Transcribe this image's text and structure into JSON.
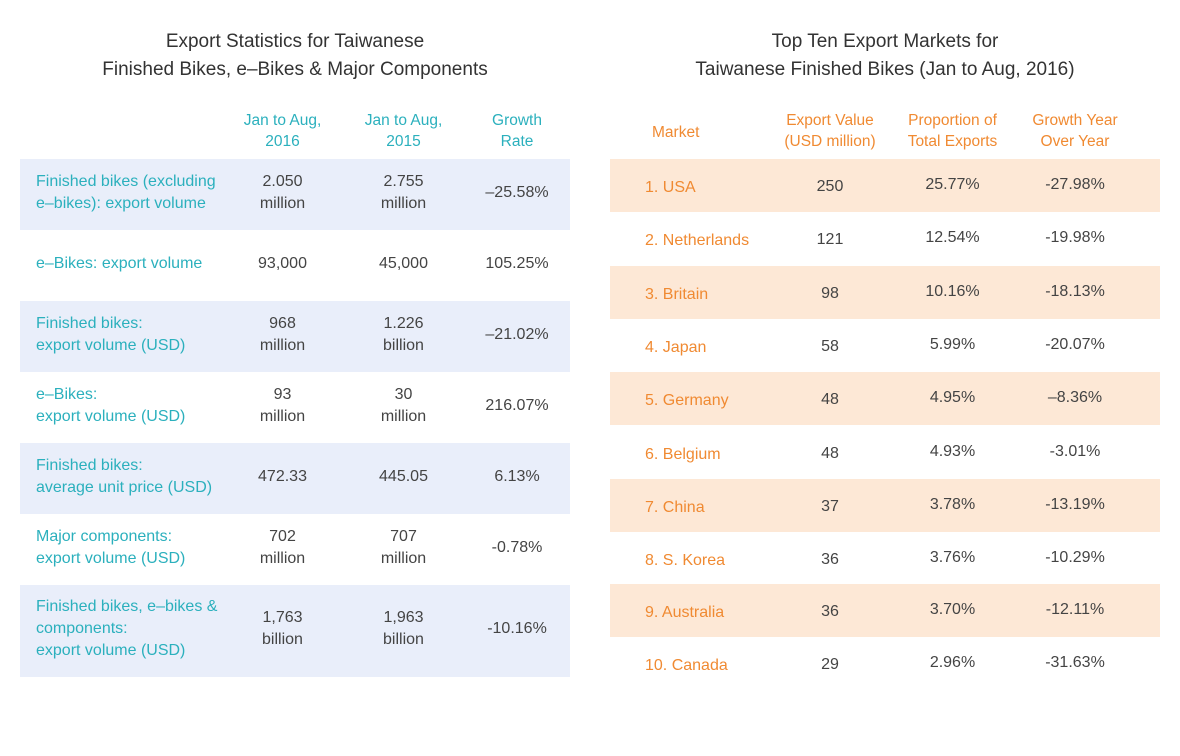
{
  "left": {
    "title": [
      "Export Statistics for Taiwanese",
      "Finished Bikes, e–Bikes & Major Components"
    ],
    "headers": {
      "col2": [
        "Jan to Aug,",
        "2016"
      ],
      "col3": [
        "Jan to Aug,",
        "2015"
      ],
      "col4": [
        "Growth",
        "Rate"
      ]
    },
    "rows": [
      {
        "label": [
          "Finished bikes (excluding",
          "e–bikes): export volume"
        ],
        "v2016": [
          "2.050",
          "million"
        ],
        "v2015": [
          "2.755",
          "million"
        ],
        "growth": [
          "–25.58%"
        ]
      },
      {
        "label": [
          "e–Bikes: export volume"
        ],
        "v2016": [
          "93,000"
        ],
        "v2015": [
          "45,000"
        ],
        "growth": [
          "105.25%"
        ]
      },
      {
        "label": [
          "Finished bikes:",
          "export volume (USD)"
        ],
        "v2016": [
          "968",
          "million"
        ],
        "v2015": [
          "1.226",
          "billion"
        ],
        "growth": [
          "–21.02%"
        ]
      },
      {
        "label": [
          "e–Bikes:",
          "export volume (USD)"
        ],
        "v2016": [
          "93",
          "million"
        ],
        "v2015": [
          "30",
          "million"
        ],
        "growth": [
          "216.07%"
        ]
      },
      {
        "label": [
          "Finished bikes:",
          "average unit price (USD)"
        ],
        "v2016": [
          "472.33"
        ],
        "v2015": [
          "445.05"
        ],
        "growth": [
          "6.13%"
        ]
      },
      {
        "label": [
          "Major components:",
          "export volume (USD)"
        ],
        "v2016": [
          "702",
          "million"
        ],
        "v2015": [
          "707",
          "million"
        ],
        "growth": [
          "-0.78%"
        ]
      },
      {
        "label": [
          "Finished bikes, e–bikes &",
          "components:",
          "export volume (USD)"
        ],
        "v2016": [
          "1,763",
          "billion"
        ],
        "v2015": [
          "1,963",
          "billion"
        ],
        "growth": [
          "-10.16%"
        ]
      }
    ]
  },
  "right": {
    "title": [
      "Top Ten Export Markets for",
      "Taiwanese Finished Bikes (Jan to Aug, 2016)"
    ],
    "headers": {
      "market": [
        "Market"
      ],
      "value": [
        "Export Value",
        "(USD million)"
      ],
      "proportion": [
        "Proportion of",
        "Total Exports"
      ],
      "growth": [
        "Growth Year",
        "Over Year"
      ]
    },
    "rows": [
      {
        "market": "1. USA",
        "value": "250",
        "proportion": "25.77%",
        "growth": "-27.98%"
      },
      {
        "market": "2. Netherlands",
        "value": "121",
        "proportion": "12.54%",
        "growth": "-19.98%"
      },
      {
        "market": "3. Britain",
        "value": "98",
        "proportion": "10.16%",
        "growth": "-18.13%"
      },
      {
        "market": "4. Japan",
        "value": "58",
        "proportion": "5.99%",
        "growth": "-20.07%"
      },
      {
        "market": "5. Germany",
        "value": "48",
        "proportion": "4.95%",
        "growth": "–8.36%"
      },
      {
        "market": "6. Belgium",
        "value": "48",
        "proportion": "4.93%",
        "growth": "-3.01%"
      },
      {
        "market": "7. China",
        "value": "37",
        "proportion": "3.78%",
        "growth": "-13.19%"
      },
      {
        "market": "8. S. Korea",
        "value": "36",
        "proportion": "3.76%",
        "growth": "-10.29%"
      },
      {
        "market": "9. Australia",
        "value": "36",
        "proportion": "3.70%",
        "growth": "-12.11%"
      },
      {
        "market": "10.  Canada",
        "value": "29",
        "proportion": "2.96%",
        "growth": "-31.63%"
      }
    ]
  },
  "colors": {
    "teal": "#2bb0bd",
    "orange": "#f08a32",
    "row_blue": "#e9eefa",
    "row_orange": "#fde8d6"
  }
}
